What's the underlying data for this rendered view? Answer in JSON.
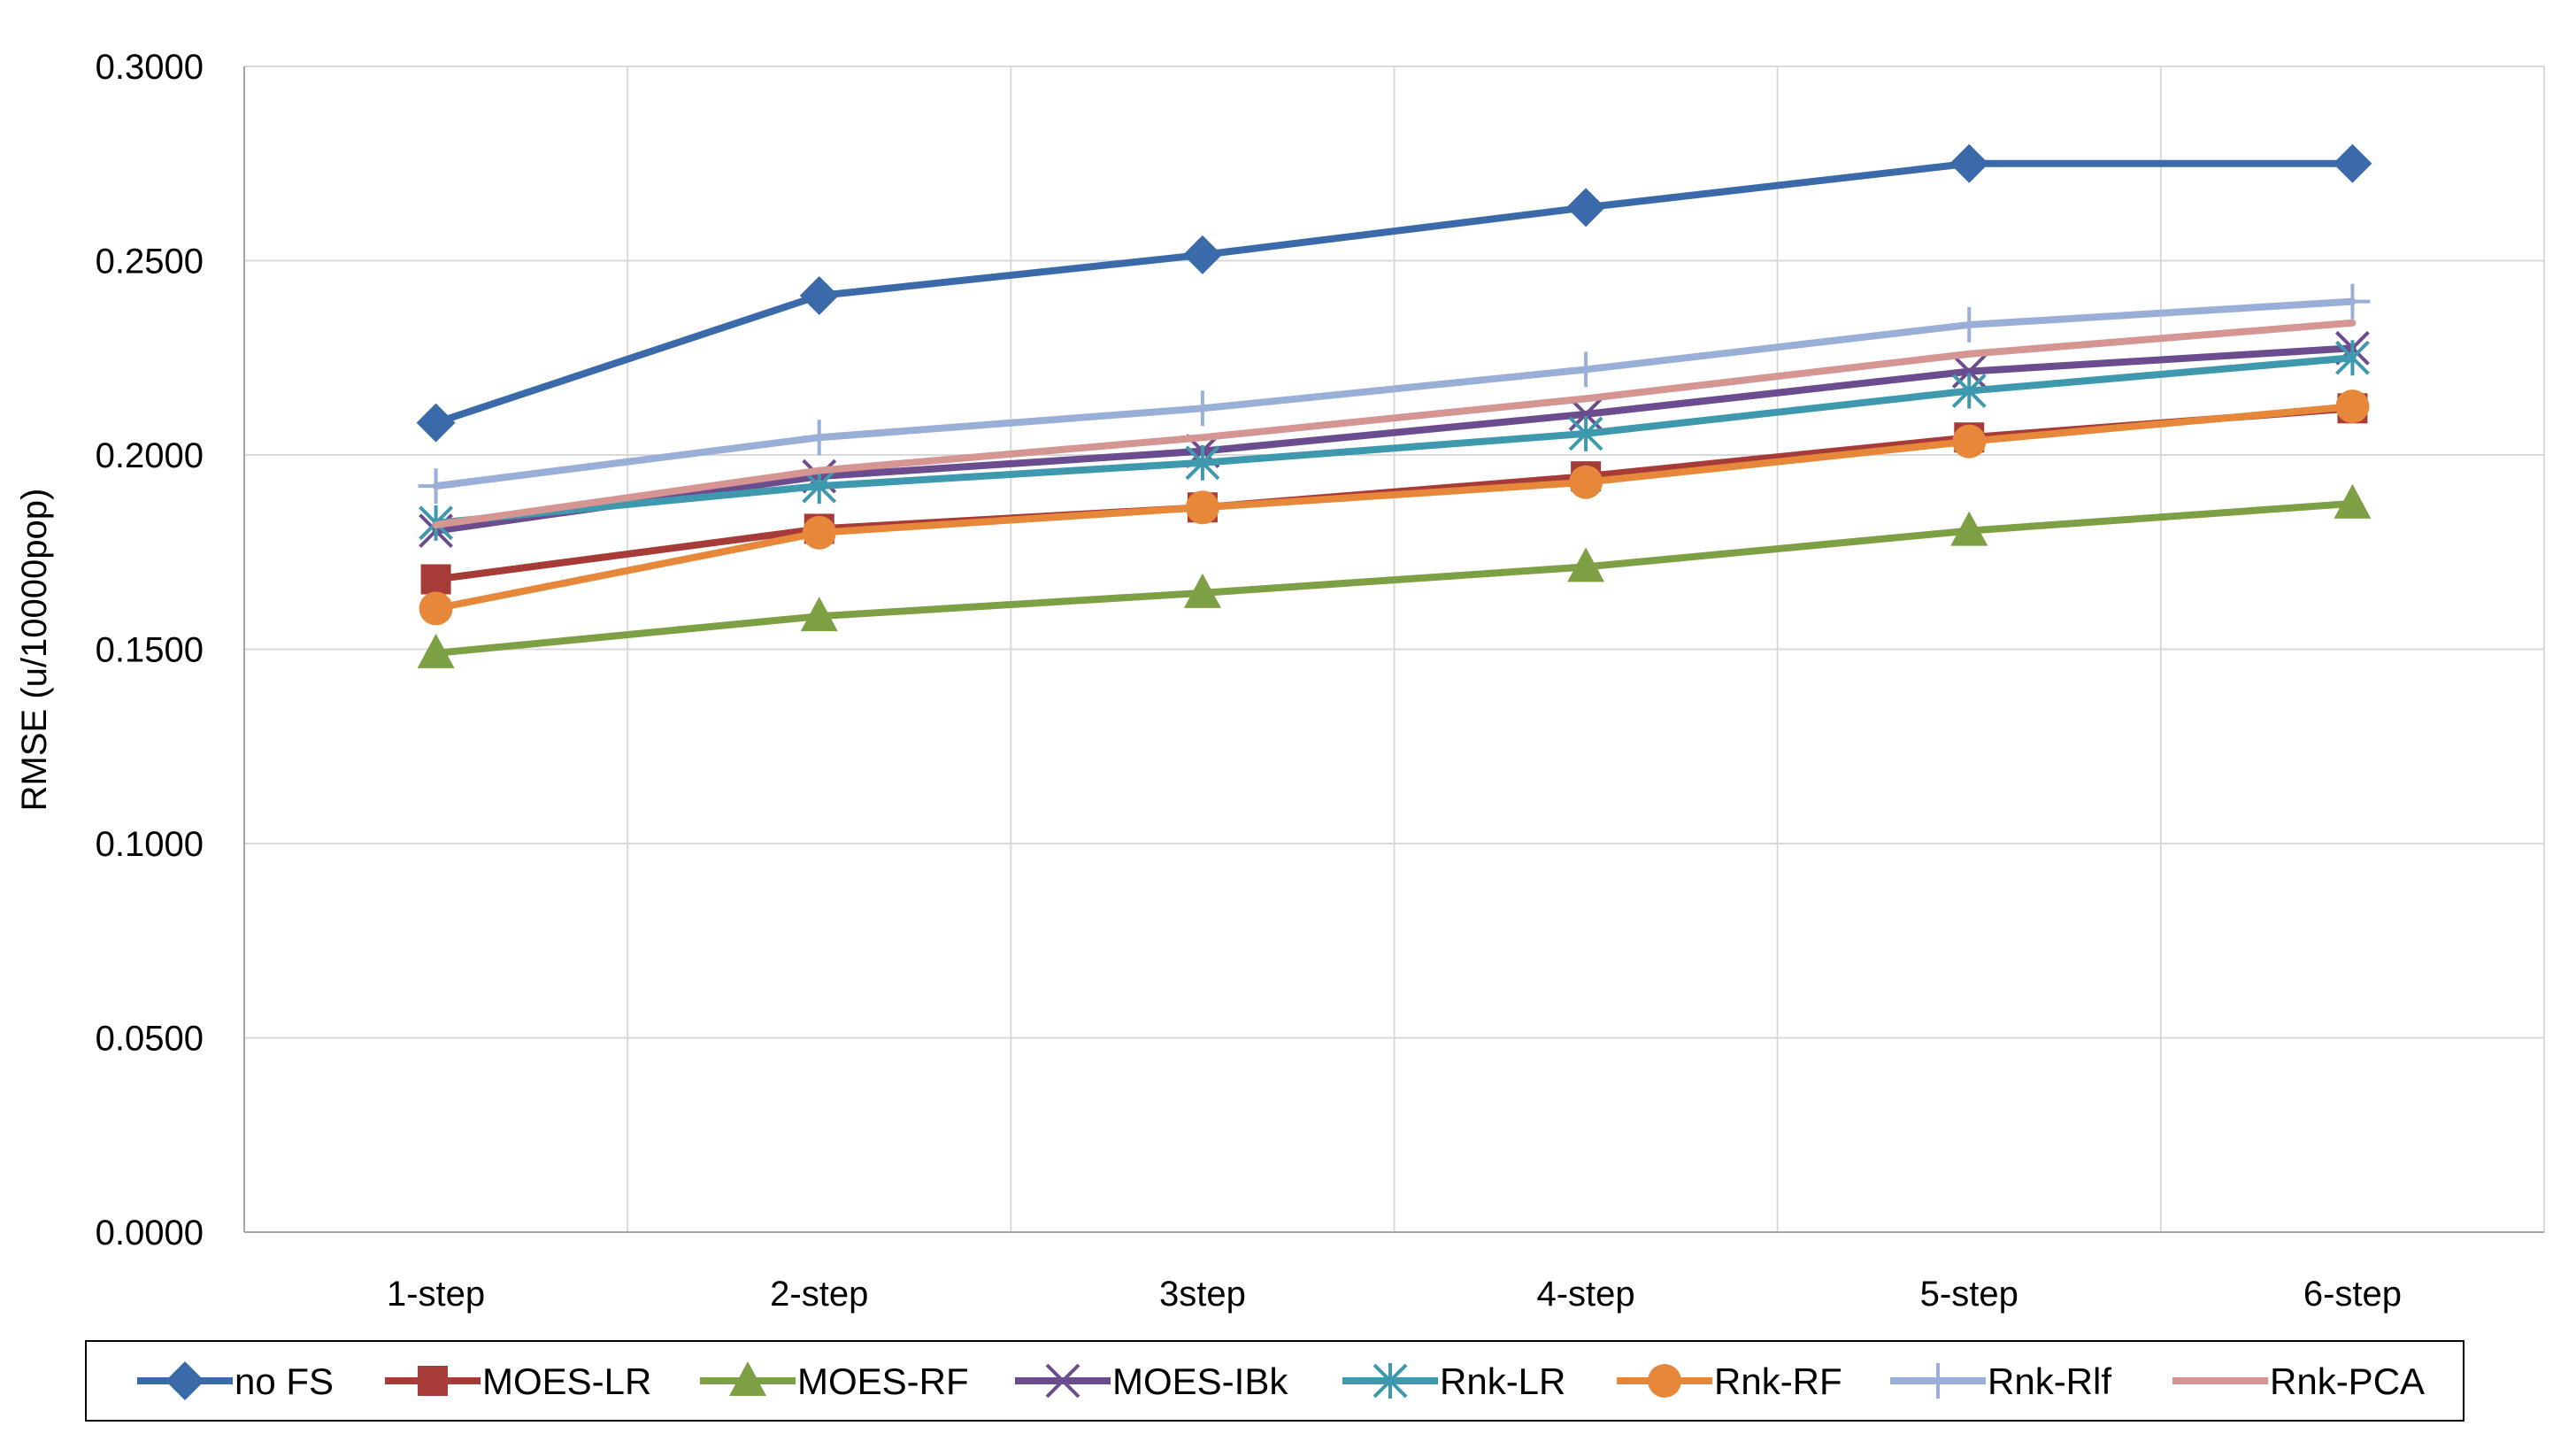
{
  "chart_data": {
    "type": "line",
    "title": "",
    "xlabel": "",
    "ylabel": "RMSE (u/10000pop)",
    "ylim": [
      0,
      0.3
    ],
    "grid": true,
    "legend_position": "bottom",
    "categories": [
      "1-step",
      "2-step",
      "3step",
      "4-step",
      "5-step",
      "6-step"
    ],
    "y_ticks": [
      "0.0000",
      "0.0500",
      "0.1000",
      "0.1500",
      "0.2000",
      "0.2500",
      "0.3000"
    ],
    "series": [
      {
        "name": "no FS",
        "color": "#3A6AAA",
        "marker": "diamond",
        "values": [
          0.2083,
          0.241,
          0.2515,
          0.2637,
          0.275,
          0.275
        ]
      },
      {
        "name": "MOES-LR",
        "color": "#A63B38",
        "marker": "square",
        "values": [
          0.168,
          0.181,
          0.1865,
          0.1945,
          0.2045,
          0.212
        ]
      },
      {
        "name": "MOES-RF",
        "color": "#7DA044",
        "marker": "triangle",
        "values": [
          0.149,
          0.1585,
          0.1645,
          0.1712,
          0.1805,
          0.1875
        ]
      },
      {
        "name": "MOES-IBk",
        "color": "#6B4C8E",
        "marker": "x",
        "values": [
          0.1805,
          0.1945,
          0.201,
          0.2105,
          0.2215,
          0.2275
        ]
      },
      {
        "name": "Rnk-LR",
        "color": "#3E98AE",
        "marker": "asterisk",
        "values": [
          0.1825,
          0.192,
          0.198,
          0.2055,
          0.2165,
          0.225
        ]
      },
      {
        "name": "Rnk-RF",
        "color": "#E6873A",
        "marker": "circle",
        "values": [
          0.1605,
          0.18,
          0.1865,
          0.193,
          0.2035,
          0.2125
        ]
      },
      {
        "name": "Rnk-Rlf",
        "color": "#9AAFD7",
        "marker": "plus",
        "values": [
          0.192,
          0.2045,
          0.212,
          0.222,
          0.2335,
          0.2395
        ]
      },
      {
        "name": "Rnk-PCA",
        "color": "#D59593",
        "marker": "none",
        "values": [
          0.182,
          0.196,
          0.2045,
          0.2145,
          0.226,
          0.234
        ]
      }
    ]
  }
}
